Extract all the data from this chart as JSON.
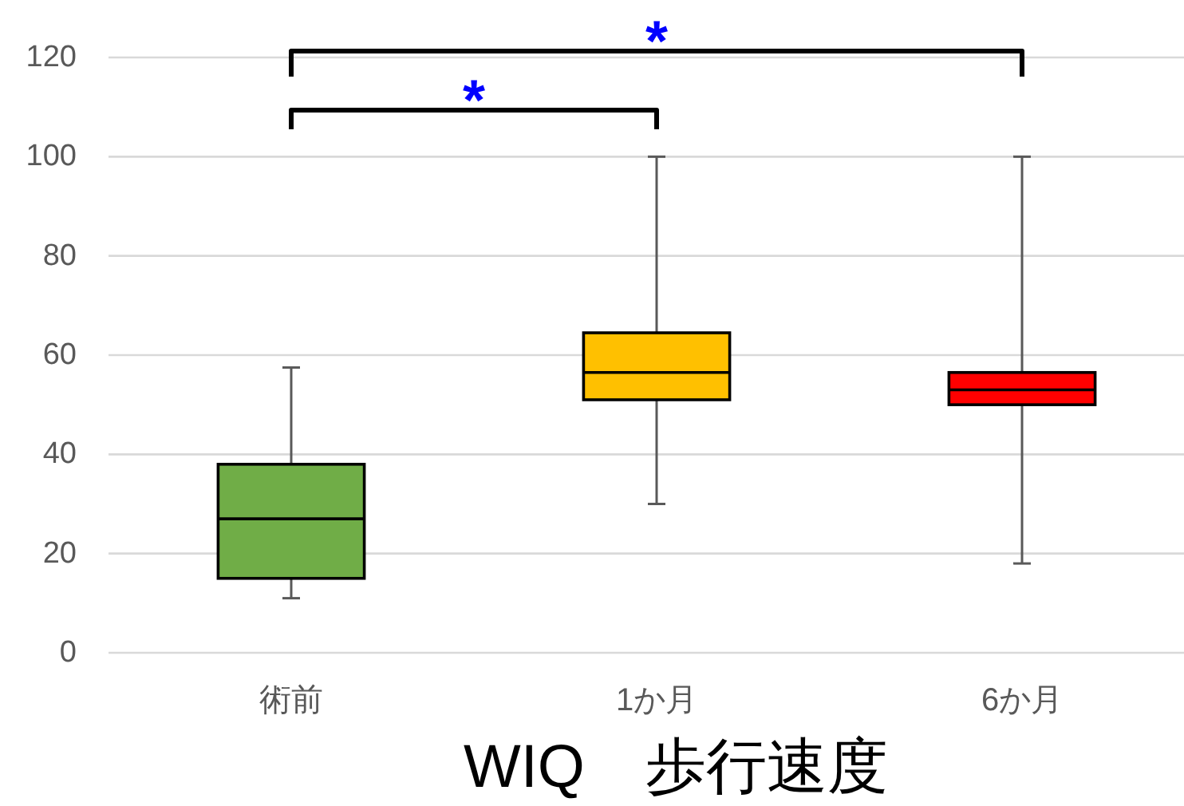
{
  "chart_data": {
    "type": "box",
    "title": "WIQ　歩行速度",
    "categories": [
      "術前",
      "1か月",
      "6か月"
    ],
    "boxes": [
      {
        "low": 11,
        "q1": 15,
        "median": 27,
        "q3": 38,
        "high": 57.5
      },
      {
        "low": 30,
        "q1": 51,
        "median": 56.5,
        "q3": 64.5,
        "high": 100
      },
      {
        "low": 18,
        "q1": 50,
        "median": 53,
        "q3": 56.5,
        "high": 100
      }
    ],
    "colors": [
      "#70ad47",
      "#ffc000",
      "#ff0000"
    ],
    "ylim": [
      0,
      120
    ],
    "yticks": [
      0,
      20,
      40,
      60,
      80,
      100,
      120
    ],
    "grid": "y",
    "annotations": [
      "*",
      "*"
    ]
  }
}
